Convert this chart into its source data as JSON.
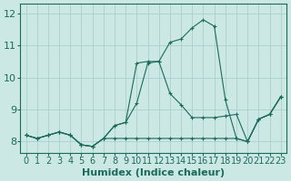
{
  "xlabel": "Humidex (Indice chaleur)",
  "bg_color": "#cce8e5",
  "grid_color": "#aacfcc",
  "line_color": "#1a6b5a",
  "xlim": [
    -0.5,
    23.5
  ],
  "ylim": [
    7.65,
    12.3
  ],
  "xticks": [
    0,
    1,
    2,
    3,
    4,
    5,
    6,
    7,
    8,
    9,
    10,
    11,
    12,
    13,
    14,
    15,
    16,
    17,
    18,
    19,
    20,
    21,
    22,
    23
  ],
  "yticks": [
    8,
    9,
    10,
    11,
    12
  ],
  "series": [
    {
      "x": [
        0,
        1,
        2,
        3,
        4,
        5,
        6,
        7,
        8,
        9,
        10,
        11,
        12,
        13,
        14,
        15,
        16,
        17,
        18,
        19,
        20,
        21,
        22,
        23
      ],
      "y": [
        8.2,
        8.1,
        8.2,
        8.3,
        8.2,
        7.9,
        7.85,
        8.1,
        8.1,
        8.1,
        8.1,
        8.1,
        8.1,
        8.1,
        8.1,
        8.1,
        8.1,
        8.1,
        8.1,
        8.1,
        8.0,
        8.7,
        8.85,
        9.4
      ]
    },
    {
      "x": [
        0,
        1,
        2,
        3,
        4,
        5,
        6,
        7,
        8,
        9,
        10,
        11,
        12,
        13,
        14,
        15,
        16,
        17,
        18,
        19,
        20,
        21,
        22,
        23
      ],
      "y": [
        8.2,
        8.1,
        8.2,
        8.3,
        8.2,
        7.9,
        7.85,
        8.1,
        8.5,
        8.6,
        10.45,
        10.5,
        10.5,
        11.1,
        11.2,
        11.55,
        11.8,
        11.6,
        9.3,
        8.1,
        8.0,
        8.7,
        8.85,
        9.4
      ]
    },
    {
      "x": [
        0,
        1,
        2,
        3,
        4,
        5,
        6,
        7,
        8,
        9,
        10,
        11,
        12,
        13,
        14,
        15,
        16,
        17,
        18,
        19,
        20,
        21,
        22,
        23
      ],
      "y": [
        8.2,
        8.1,
        8.2,
        8.3,
        8.2,
        7.9,
        7.85,
        8.1,
        8.5,
        8.6,
        9.2,
        10.45,
        10.5,
        9.5,
        9.15,
        8.75,
        8.75,
        8.75,
        8.8,
        8.85,
        8.0,
        8.7,
        8.85,
        9.4
      ]
    }
  ],
  "font_size_xlabel": 8,
  "font_size_ytick": 8,
  "font_size_xtick": 7
}
